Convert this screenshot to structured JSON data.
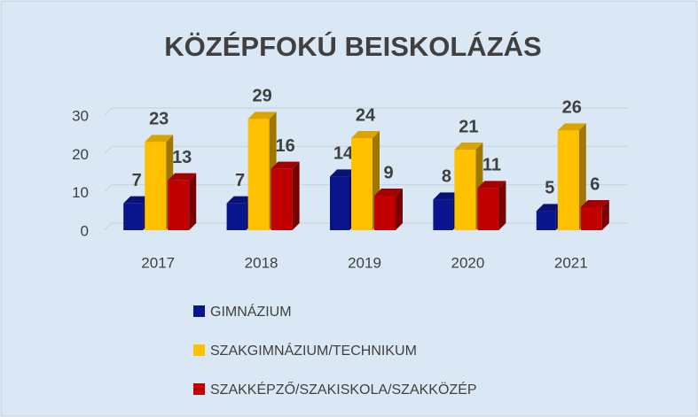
{
  "chart_data": {
    "type": "bar3d",
    "title": "KÖZÉPFOKÚ BEISKOLÁZÁS",
    "categories": [
      "2017",
      "2018",
      "2019",
      "2020",
      "2021"
    ],
    "series": [
      {
        "name": "GIMNÁZIUM",
        "color": "#0a148c",
        "values": [
          7,
          7,
          14,
          8,
          5
        ]
      },
      {
        "name": "SZAKGIMNÁZIUM/TECHNIKUM",
        "color": "#ffc000",
        "values": [
          23,
          29,
          24,
          21,
          26
        ]
      },
      {
        "name": "SZAKKÉPZŐ/SZAKISKOLA/SZAKKÖZÉP",
        "color": "#c00000",
        "values": [
          13,
          16,
          9,
          11,
          6
        ]
      }
    ],
    "ylim": [
      0,
      30
    ],
    "yticks": [
      0,
      10,
      20,
      30
    ],
    "grid": true
  }
}
